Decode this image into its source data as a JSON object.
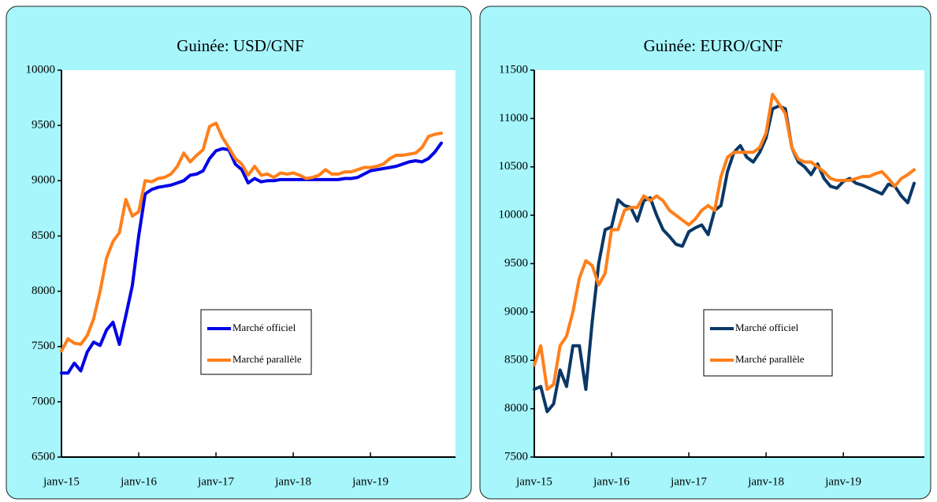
{
  "chart_data": [
    {
      "type": "line",
      "title": "Guinée: USD/GNF",
      "categories": [
        "janv-15",
        null,
        null,
        null,
        null,
        null,
        null,
        null,
        null,
        null,
        null,
        null,
        "janv-16",
        null,
        null,
        null,
        null,
        null,
        null,
        null,
        null,
        null,
        null,
        null,
        "janv-17",
        null,
        null,
        null,
        null,
        null,
        null,
        null,
        null,
        null,
        null,
        null,
        "janv-18",
        null,
        null,
        null,
        null,
        null,
        null,
        null,
        null,
        null,
        null,
        null,
        "janv-19",
        null,
        null,
        null,
        null,
        null,
        null,
        null,
        null,
        null,
        null,
        null
      ],
      "ylim": [
        6500,
        10000
      ],
      "yticks": [
        6500,
        7000,
        7500,
        8000,
        8500,
        9000,
        9500,
        10000
      ],
      "series": [
        {
          "name": "Marché officiel",
          "color": "#0000e6",
          "values": [
            7260,
            7260,
            7350,
            7280,
            7450,
            7540,
            7510,
            7650,
            7720,
            7520,
            7780,
            8050,
            8500,
            8880,
            8920,
            8940,
            8950,
            8960,
            8980,
            9000,
            9050,
            9060,
            9090,
            9200,
            9270,
            9290,
            9280,
            9150,
            9100,
            8980,
            9020,
            8990,
            9000,
            9000,
            9010,
            9010,
            9010,
            9010,
            9010,
            9010,
            9010,
            9010,
            9010,
            9010,
            9020,
            9020,
            9030,
            9060,
            9090,
            9100,
            9110,
            9120,
            9130,
            9150,
            9170,
            9180,
            9170,
            9200,
            9260,
            9340
          ]
        },
        {
          "name": "Marché parallèle",
          "color": "#ff7f1a",
          "values": [
            7460,
            7570,
            7530,
            7520,
            7600,
            7750,
            8000,
            8300,
            8450,
            8530,
            8830,
            8680,
            8720,
            9000,
            8990,
            9020,
            9030,
            9060,
            9130,
            9250,
            9170,
            9230,
            9280,
            9490,
            9520,
            9390,
            9300,
            9200,
            9150,
            9050,
            9130,
            9050,
            9060,
            9030,
            9070,
            9060,
            9070,
            9050,
            9020,
            9030,
            9050,
            9100,
            9060,
            9060,
            9080,
            9080,
            9100,
            9120,
            9120,
            9130,
            9150,
            9200,
            9230,
            9230,
            9240,
            9250,
            9300,
            9400,
            9420,
            9430
          ]
        }
      ]
    },
    {
      "type": "line",
      "title": "Guinée: EURO/GNF",
      "categories": [
        "janv-15",
        null,
        null,
        null,
        null,
        null,
        null,
        null,
        null,
        null,
        null,
        null,
        "janv-16",
        null,
        null,
        null,
        null,
        null,
        null,
        null,
        null,
        null,
        null,
        null,
        "janv-17",
        null,
        null,
        null,
        null,
        null,
        null,
        null,
        null,
        null,
        null,
        null,
        "janv-18",
        null,
        null,
        null,
        null,
        null,
        null,
        null,
        null,
        null,
        null,
        null,
        "janv-19",
        null,
        null,
        null,
        null,
        null,
        null,
        null,
        null,
        null,
        null,
        null
      ],
      "ylim": [
        7500,
        11500
      ],
      "yticks": [
        7500,
        8000,
        8500,
        9000,
        9500,
        10000,
        10500,
        11000,
        11500
      ],
      "series": [
        {
          "name": "Marché officiel",
          "color": "#0a3766",
          "values": [
            8200,
            8230,
            7970,
            8050,
            8400,
            8230,
            8650,
            8650,
            8200,
            8900,
            9500,
            9850,
            9880,
            10160,
            10100,
            10080,
            9940,
            10150,
            10180,
            10000,
            9850,
            9780,
            9700,
            9680,
            9830,
            9870,
            9900,
            9800,
            10050,
            10100,
            10450,
            10650,
            10720,
            10600,
            10550,
            10650,
            10800,
            11100,
            11130,
            11100,
            10700,
            10550,
            10500,
            10420,
            10530,
            10380,
            10300,
            10280,
            10350,
            10380,
            10330,
            10310,
            10280,
            10250,
            10220,
            10320,
            10300,
            10200,
            10130,
            10330
          ]
        },
        {
          "name": "Marché parallèle",
          "color": "#ff7f1a",
          "values": [
            8450,
            8650,
            8200,
            8250,
            8650,
            8750,
            9000,
            9350,
            9530,
            9480,
            9280,
            9400,
            9850,
            9850,
            10050,
            10080,
            10080,
            10200,
            10150,
            10200,
            10150,
            10050,
            10000,
            9950,
            9900,
            9960,
            10050,
            10100,
            10050,
            10400,
            10600,
            10650,
            10650,
            10650,
            10650,
            10700,
            10850,
            11250,
            11150,
            11050,
            10700,
            10580,
            10550,
            10550,
            10500,
            10450,
            10380,
            10360,
            10360,
            10360,
            10380,
            10400,
            10400,
            10430,
            10450,
            10380,
            10300,
            10380,
            10420,
            10470
          ]
        }
      ]
    }
  ]
}
